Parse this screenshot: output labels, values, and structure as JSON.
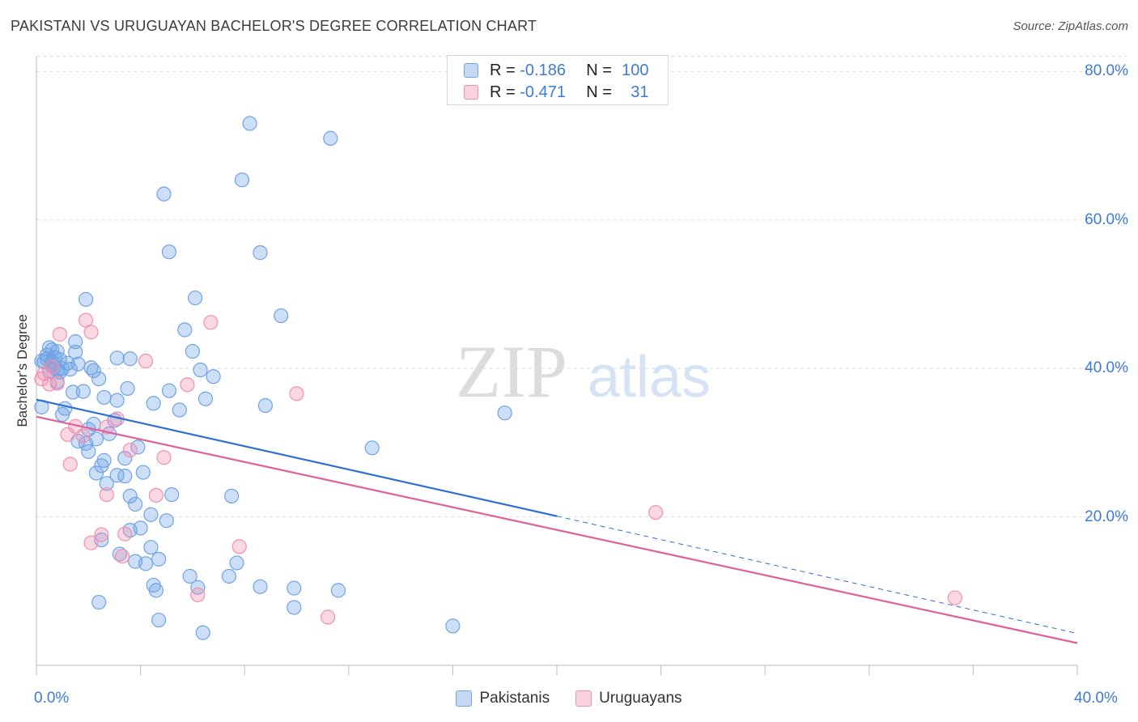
{
  "chart_data": {
    "type": "scatter",
    "title": "PAKISTANI VS URUGUAYAN BACHELOR'S DEGREE CORRELATION CHART",
    "source": "Source: ZipAtlas.com",
    "ylabel": "Bachelor's Degree",
    "xlim": [
      0,
      40
    ],
    "ylim": [
      0,
      82
    ],
    "y_ticks": [
      {
        "value": 20,
        "label": "20.0%"
      },
      {
        "value": 40,
        "label": "40.0%"
      },
      {
        "value": 60,
        "label": "60.0%"
      },
      {
        "value": 80,
        "label": "80.0%"
      }
    ],
    "x_ticks": [
      {
        "value": 0,
        "label": "0.0%"
      },
      {
        "value": 40,
        "label": "40.0%"
      }
    ],
    "legend": {
      "r_label": "R =",
      "n_label": "N =",
      "rows": [
        {
          "name": "Pakistanis",
          "r": "-0.186",
          "n": "100"
        },
        {
          "name": "Uruguayans",
          "r": "-0.471",
          "n": "31"
        }
      ]
    },
    "watermark": {
      "zip": "ZIP",
      "atlas": "atlas"
    },
    "series": [
      {
        "name": "Pakistanis",
        "color": "#6fa3e6",
        "line_color": "#2e6fd1",
        "trend": {
          "x0": 0,
          "y0": 35.8,
          "x1": 20,
          "y1": 20.1,
          "x_dash_end": 40,
          "y_dash_end": 4.3
        },
        "points": [
          [
            8.2,
            73
          ],
          [
            11.3,
            71
          ],
          [
            7.9,
            65.4
          ],
          [
            4.9,
            63.5
          ],
          [
            5.1,
            55.7
          ],
          [
            8.6,
            55.6
          ],
          [
            1.9,
            49.3
          ],
          [
            6.1,
            49.5
          ],
          [
            9.4,
            47.1
          ],
          [
            1.5,
            43.6
          ],
          [
            5.7,
            45.2
          ],
          [
            0.5,
            42.8
          ],
          [
            0.6,
            42.5
          ],
          [
            0.8,
            42.3
          ],
          [
            1.5,
            42.2
          ],
          [
            0.4,
            41.3
          ],
          [
            0.3,
            40.9
          ],
          [
            0.6,
            40.5
          ],
          [
            0.7,
            40.2
          ],
          [
            0.8,
            39.8
          ],
          [
            0.9,
            39.5
          ],
          [
            1.6,
            40.6
          ],
          [
            1.2,
            40.7
          ],
          [
            0.5,
            39.6
          ],
          [
            2.1,
            40.1
          ],
          [
            2.2,
            39.7
          ],
          [
            3.1,
            41.4
          ],
          [
            3.6,
            41.3
          ],
          [
            6.0,
            42.3
          ],
          [
            6.3,
            39.8
          ],
          [
            6.8,
            38.9
          ],
          [
            3.5,
            37.3
          ],
          [
            1.8,
            36.9
          ],
          [
            1.4,
            36.8
          ],
          [
            2.6,
            36.1
          ],
          [
            3.1,
            35.7
          ],
          [
            5.1,
            37.0
          ],
          [
            5.5,
            34.4
          ],
          [
            6.5,
            35.9
          ],
          [
            8.8,
            35.0
          ],
          [
            0.2,
            34.8
          ],
          [
            1.1,
            34.6
          ],
          [
            18.0,
            34.0
          ],
          [
            2.0,
            31.8
          ],
          [
            2.3,
            30.5
          ],
          [
            2.8,
            31.2
          ],
          [
            1.6,
            30.2
          ],
          [
            3.9,
            29.4
          ],
          [
            12.9,
            29.3
          ],
          [
            2.0,
            28.8
          ],
          [
            3.4,
            27.9
          ],
          [
            2.6,
            27.6
          ],
          [
            2.5,
            26.9
          ],
          [
            2.3,
            25.9
          ],
          [
            3.1,
            25.6
          ],
          [
            3.4,
            25.5
          ],
          [
            4.1,
            26.0
          ],
          [
            2.7,
            24.5
          ],
          [
            5.2,
            23.0
          ],
          [
            7.5,
            22.8
          ],
          [
            3.8,
            21.7
          ],
          [
            4.4,
            20.3
          ],
          [
            3.6,
            18.2
          ],
          [
            4.0,
            18.5
          ],
          [
            2.5,
            16.9
          ],
          [
            4.4,
            15.9
          ],
          [
            3.2,
            15.0
          ],
          [
            4.7,
            14.3
          ],
          [
            4.2,
            13.7
          ],
          [
            7.7,
            13.8
          ],
          [
            3.8,
            14.0
          ],
          [
            5.9,
            12.0
          ],
          [
            7.4,
            12.0
          ],
          [
            4.5,
            10.8
          ],
          [
            6.2,
            10.5
          ],
          [
            8.6,
            10.6
          ],
          [
            9.9,
            10.4
          ],
          [
            11.6,
            10.1
          ],
          [
            4.6,
            10.1
          ],
          [
            2.4,
            8.5
          ],
          [
            9.9,
            7.8
          ],
          [
            4.7,
            6.1
          ],
          [
            6.4,
            4.4
          ],
          [
            16.0,
            5.3
          ],
          [
            0.2,
            41.0
          ],
          [
            0.9,
            41.2
          ],
          [
            1.3,
            39.9
          ],
          [
            0.6,
            40.9
          ],
          [
            0.4,
            41.8
          ],
          [
            1.0,
            40.0
          ],
          [
            0.7,
            41.5
          ],
          [
            2.4,
            38.6
          ],
          [
            4.5,
            35.3
          ],
          [
            3.0,
            33.0
          ],
          [
            2.2,
            32.5
          ],
          [
            1.0,
            33.8
          ],
          [
            0.8,
            38.2
          ],
          [
            1.9,
            29.9
          ],
          [
            3.6,
            22.8
          ],
          [
            5.0,
            19.5
          ]
        ]
      },
      {
        "name": "Uruguayans",
        "color": "#f090b0",
        "line_color": "#e0609a",
        "trend": {
          "x0": 0,
          "y0": 33.5,
          "x1": 40,
          "y1": 3.0
        },
        "points": [
          [
            1.9,
            46.5
          ],
          [
            6.7,
            46.2
          ],
          [
            0.9,
            44.6
          ],
          [
            2.1,
            44.9
          ],
          [
            4.2,
            41.0
          ],
          [
            0.6,
            40.2
          ],
          [
            0.2,
            38.6
          ],
          [
            0.5,
            37.9
          ],
          [
            5.8,
            37.8
          ],
          [
            10.0,
            36.6
          ],
          [
            3.1,
            33.2
          ],
          [
            1.5,
            32.2
          ],
          [
            2.7,
            32.1
          ],
          [
            1.2,
            31.1
          ],
          [
            1.8,
            30.9
          ],
          [
            1.3,
            27.1
          ],
          [
            4.9,
            28.0
          ],
          [
            4.6,
            22.9
          ],
          [
            2.7,
            23.0
          ],
          [
            2.5,
            17.6
          ],
          [
            3.4,
            17.7
          ],
          [
            2.1,
            16.5
          ],
          [
            7.8,
            16.0
          ],
          [
            3.3,
            14.7
          ],
          [
            6.2,
            9.5
          ],
          [
            11.2,
            6.5
          ],
          [
            23.8,
            20.6
          ],
          [
            35.3,
            9.1
          ],
          [
            0.3,
            39.3
          ],
          [
            0.8,
            38.0
          ],
          [
            3.6,
            29.0
          ]
        ]
      }
    ]
  }
}
